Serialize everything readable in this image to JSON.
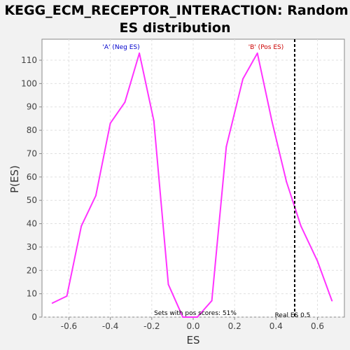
{
  "chart_data": {
    "type": "line",
    "title_line1": "KEGG_ECM_RECEPTOR_INTERACTION: Random",
    "title_line2": "ES distribution",
    "xlabel": "ES",
    "ylabel": "P(ES)",
    "xlim": [
      -0.73,
      0.73
    ],
    "ylim": [
      0,
      119
    ],
    "xticks": [
      -0.6,
      -0.4,
      -0.2,
      0.0,
      0.2,
      0.4,
      0.6
    ],
    "xtick_labels": [
      "-0.6",
      "-0.4",
      "-0.2",
      "0.0",
      "0.2",
      "0.4",
      "0.6"
    ],
    "yticks": [
      0,
      10,
      20,
      30,
      40,
      50,
      60,
      70,
      80,
      90,
      100,
      110
    ],
    "ytick_labels": [
      "0",
      "10",
      "20",
      "30",
      "40",
      "50",
      "60",
      "70",
      "80",
      "90",
      "100",
      "110"
    ],
    "grid": true,
    "series": [
      {
        "color": "#ff33ff",
        "x": [
          -0.68,
          -0.61,
          -0.54,
          -0.47,
          -0.4,
          -0.33,
          -0.26,
          -0.19,
          -0.12,
          -0.05,
          0.02,
          0.09,
          0.16,
          0.24,
          0.31,
          0.38,
          0.45,
          0.52,
          0.6,
          0.67
        ],
        "y": [
          6,
          9,
          39,
          52,
          83,
          92,
          113,
          84,
          14,
          0,
          0,
          7,
          73,
          102,
          113,
          84,
          58,
          39,
          24,
          7
        ]
      }
    ],
    "annotations": {
      "neg_label": "'A' (Neg ES)",
      "neg_color": "#0000cc",
      "pos_label": "'B' (Pos ES)",
      "pos_color": "#cc0000",
      "sets_text": "Sets with pos scores: 51%",
      "real_es_label": "Real ES 0.5",
      "real_es": 0.49
    }
  }
}
